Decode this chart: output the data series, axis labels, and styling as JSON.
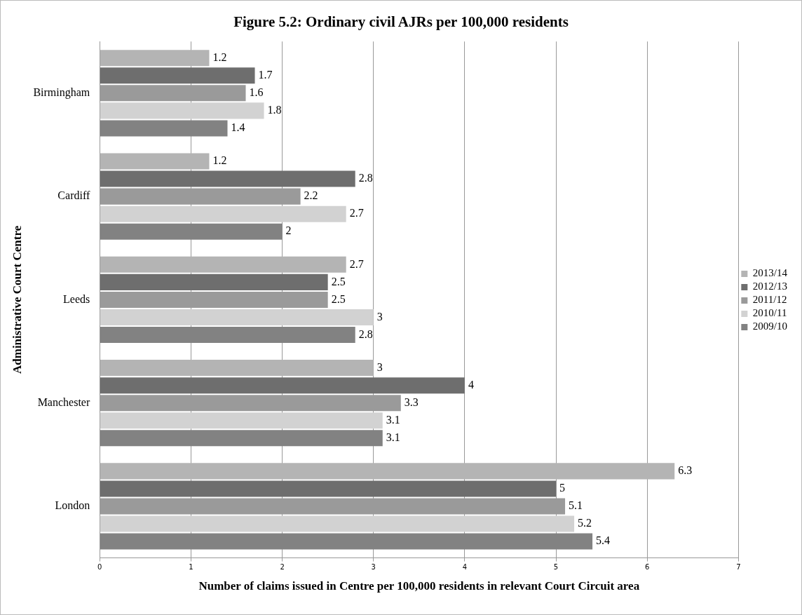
{
  "chart_data": {
    "type": "bar",
    "orientation": "horizontal",
    "title": "Figure 5.2: Ordinary civil AJRs per 100,000 residents",
    "xlabel": "Number of claims issued in Centre per 100,000 residents in relevant Court Circuit area",
    "ylabel": "Administrative Court Centre",
    "categories": [
      "Birmingham",
      "Cardiff",
      "Leeds",
      "Manchester",
      "London"
    ],
    "series": [
      {
        "name": "2013/14",
        "color": "#b4b4b4",
        "values": [
          1.2,
          1.2,
          2.7,
          3,
          6.3
        ]
      },
      {
        "name": "2012/13",
        "color": "#6e6e6e",
        "values": [
          1.7,
          2.8,
          2.5,
          4,
          5
        ]
      },
      {
        "name": "2011/12",
        "color": "#9a9a9a",
        "values": [
          1.6,
          2.2,
          2.5,
          3.3,
          5.1
        ]
      },
      {
        "name": "2010/11",
        "color": "#d2d2d2",
        "values": [
          1.8,
          2.7,
          3,
          3.1,
          5.2
        ]
      },
      {
        "name": "2009/10",
        "color": "#828282",
        "values": [
          1.4,
          2,
          2.8,
          3.1,
          5.4
        ]
      }
    ],
    "xlim": [
      0,
      7
    ],
    "xticks": [
      0,
      1,
      2,
      3,
      4,
      5,
      6,
      7
    ],
    "grid": "x",
    "legend": "right",
    "data_labels": true
  }
}
